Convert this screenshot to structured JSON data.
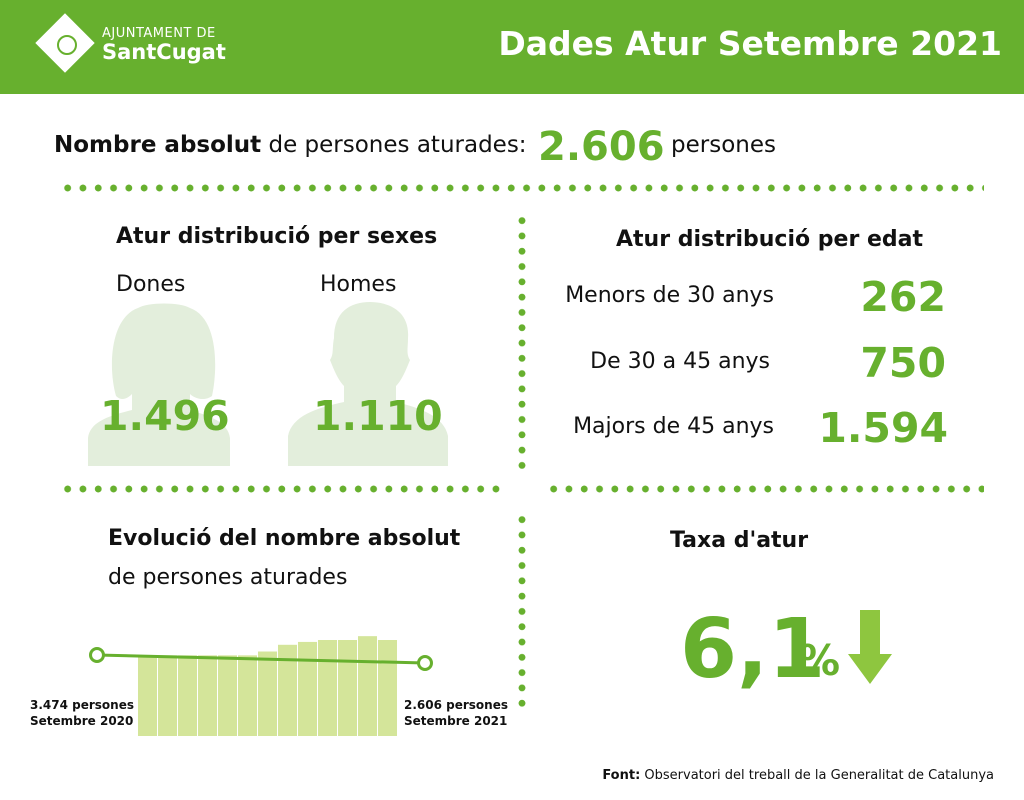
{
  "header": {
    "logo_line1": "AJUNTAMENT DE",
    "logo_line2": "SantCugat",
    "title": "Dades Atur Setembre 2021",
    "colors": {
      "brand_green": "#67b02e",
      "light_green": "#e3eedc",
      "bar_green": "#d4e59a"
    }
  },
  "total": {
    "label_bold": "Nombre absolut",
    "label_rest": "de persones aturades:",
    "value": "2.606",
    "unit": "persones"
  },
  "sexes": {
    "title": "Atur distribució per sexes",
    "women_label": "Dones",
    "women_value": "1.496",
    "men_label": "Homes",
    "men_value": "1.110"
  },
  "ages": {
    "title": "Atur distribució per edat",
    "rows": [
      {
        "label": "Menors de 30 anys",
        "value": "262"
      },
      {
        "label": "De 30 a 45 anys",
        "value": "750"
      },
      {
        "label": "Majors de 45 anys",
        "value": "1.594"
      }
    ]
  },
  "evolution": {
    "title_bold": "Evolució del nombre absolut",
    "title_rest": "de persones aturades",
    "start_line1": "3.474 persones",
    "start_line2": "Setembre 2020",
    "end_line1": "2.606 persones",
    "end_line2": "Setembre 2021"
  },
  "rate": {
    "title": "Taxa d'atur",
    "value": "6,1",
    "unit": "%",
    "trend_icon": "arrow-down-icon"
  },
  "chart_data": {
    "type": "bar",
    "values": [
      3474,
      3474,
      3474,
      3474,
      3474,
      3474,
      3474,
      3474,
      3474,
      3474,
      3474,
      3474,
      2606
    ],
    "relative_heights": [
      0.84,
      0.84,
      0.84,
      0.84,
      0.84,
      0.84,
      0.88,
      0.95,
      0.98,
      1.0,
      1.0,
      1.04,
      1.0
    ],
    "line": {
      "start": 3474,
      "end": 2606
    }
  },
  "footer": {
    "source_label": "Font:",
    "source_text": "Observatori del treball de la Generalitat de Catalunya"
  }
}
